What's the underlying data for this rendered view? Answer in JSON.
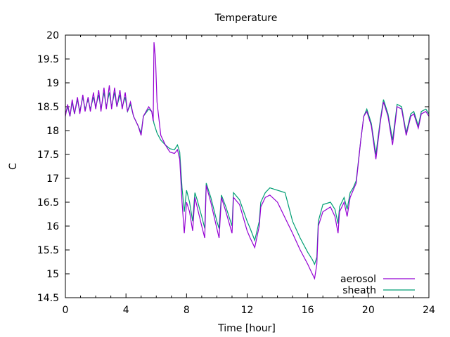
{
  "chart_data": {
    "type": "line",
    "title": "Temperature",
    "xlabel": "Time [hour]",
    "ylabel": "C",
    "xlim": [
      0,
      24
    ],
    "ylim": [
      14.5,
      20
    ],
    "xticks": [
      0,
      4,
      8,
      12,
      16,
      20,
      24
    ],
    "yticks": [
      14.5,
      15,
      15.5,
      16,
      16.5,
      17,
      17.5,
      18,
      18.5,
      19,
      19.5,
      20
    ],
    "ytick_labels": [
      "14.5",
      "15",
      "15.5",
      "16",
      "16.5",
      "17",
      "17.5",
      "18",
      "18.5",
      "19",
      "19.5",
      "20"
    ],
    "grid": false,
    "legend_position": "bottom-right",
    "series": [
      {
        "name": "aerosol",
        "color": "#9400d3",
        "x": [
          0,
          0.15,
          0.3,
          0.45,
          0.6,
          0.8,
          0.95,
          1.15,
          1.3,
          1.5,
          1.65,
          1.85,
          2.0,
          2.2,
          2.35,
          2.55,
          2.7,
          2.9,
          3.05,
          3.25,
          3.4,
          3.6,
          3.75,
          3.95,
          4.1,
          4.3,
          4.5,
          4.8,
          5.0,
          5.15,
          5.5,
          5.7,
          5.8,
          5.85,
          5.95,
          6.05,
          6.3,
          6.6,
          6.9,
          7.2,
          7.4,
          7.55,
          7.7,
          7.85,
          8.0,
          8.2,
          8.4,
          8.55,
          8.7,
          9.0,
          9.2,
          9.3,
          9.6,
          10.0,
          10.15,
          10.3,
          10.6,
          11.0,
          11.1,
          11.5,
          12.0,
          12.2,
          12.5,
          12.8,
          12.9,
          13.2,
          13.5,
          14.0,
          15.0,
          15.5,
          16.0,
          16.3,
          16.45,
          16.6,
          16.7,
          17.0,
          17.5,
          17.8,
          18.0,
          18.1,
          18.4,
          18.6,
          18.8,
          19.0,
          19.2,
          19.5,
          19.7,
          19.9,
          20.2,
          20.5,
          20.8,
          21.0,
          21.3,
          21.6,
          21.9,
          22.2,
          22.5,
          22.8,
          23.0,
          23.3,
          23.5,
          23.8,
          24.0
        ],
        "y": [
          18.3,
          18.55,
          18.3,
          18.65,
          18.35,
          18.7,
          18.35,
          18.75,
          18.4,
          18.7,
          18.4,
          18.8,
          18.45,
          18.85,
          18.4,
          18.9,
          18.45,
          18.95,
          18.45,
          18.9,
          18.5,
          18.85,
          18.45,
          18.8,
          18.4,
          18.6,
          18.3,
          18.1,
          17.9,
          18.3,
          18.5,
          18.4,
          18.2,
          19.85,
          19.5,
          18.6,
          17.9,
          17.7,
          17.55,
          17.52,
          17.6,
          17.4,
          16.5,
          15.85,
          16.5,
          16.3,
          15.9,
          16.6,
          16.4,
          16.0,
          15.75,
          16.85,
          16.5,
          15.95,
          15.75,
          16.6,
          16.3,
          15.85,
          16.6,
          16.45,
          15.9,
          15.75,
          15.55,
          16.0,
          16.4,
          16.6,
          16.65,
          16.5,
          15.85,
          15.5,
          15.2,
          15.0,
          14.9,
          15.2,
          16.0,
          16.3,
          16.4,
          16.2,
          15.85,
          16.3,
          16.5,
          16.2,
          16.6,
          16.75,
          16.9,
          17.8,
          18.3,
          18.4,
          18.1,
          17.4,
          18.2,
          18.6,
          18.3,
          17.7,
          18.5,
          18.45,
          17.9,
          18.3,
          18.35,
          18.05,
          18.35,
          18.4,
          18.3
        ]
      },
      {
        "name": "sheath",
        "color": "#009e73",
        "x": [
          0,
          0.15,
          0.3,
          0.45,
          0.6,
          0.8,
          0.95,
          1.15,
          1.3,
          1.5,
          1.65,
          1.85,
          2.0,
          2.2,
          2.35,
          2.55,
          2.7,
          2.9,
          3.05,
          3.25,
          3.4,
          3.6,
          3.75,
          3.95,
          4.1,
          4.3,
          4.5,
          4.8,
          5.0,
          5.15,
          5.5,
          5.7,
          5.85,
          6.05,
          6.3,
          6.6,
          6.9,
          7.2,
          7.4,
          7.55,
          7.7,
          7.85,
          8.0,
          8.2,
          8.4,
          8.55,
          8.7,
          9.0,
          9.2,
          9.3,
          9.6,
          10.0,
          10.15,
          10.3,
          10.6,
          11.0,
          11.1,
          11.5,
          12.0,
          12.2,
          12.5,
          12.8,
          12.9,
          13.2,
          13.5,
          14.5,
          15.0,
          15.5,
          16.0,
          16.3,
          16.45,
          16.6,
          16.7,
          17.0,
          17.5,
          17.8,
          18.0,
          18.1,
          18.4,
          18.6,
          18.8,
          19.0,
          19.2,
          19.5,
          19.7,
          19.9,
          20.2,
          20.5,
          20.8,
          21.0,
          21.3,
          21.6,
          21.9,
          22.2,
          22.5,
          22.8,
          23.0,
          23.3,
          23.5,
          23.8,
          24.0
        ],
        "y": [
          18.35,
          18.5,
          18.3,
          18.6,
          18.35,
          18.65,
          18.4,
          18.7,
          18.45,
          18.65,
          18.45,
          18.7,
          18.5,
          18.75,
          18.45,
          18.8,
          18.5,
          18.8,
          18.5,
          18.8,
          18.5,
          18.75,
          18.5,
          18.7,
          18.4,
          18.55,
          18.3,
          18.1,
          17.95,
          18.3,
          18.45,
          18.4,
          18.15,
          17.95,
          17.8,
          17.7,
          17.62,
          17.6,
          17.7,
          17.55,
          16.8,
          16.3,
          16.75,
          16.5,
          16.1,
          16.7,
          16.55,
          16.2,
          15.95,
          16.9,
          16.6,
          16.1,
          15.95,
          16.65,
          16.4,
          16.0,
          16.7,
          16.55,
          16.1,
          15.95,
          15.7,
          16.1,
          16.5,
          16.7,
          16.8,
          16.7,
          16.1,
          15.75,
          15.45,
          15.3,
          15.2,
          15.35,
          16.1,
          16.45,
          16.5,
          16.35,
          16.05,
          16.4,
          16.6,
          16.35,
          16.7,
          16.8,
          16.95,
          17.8,
          18.3,
          18.45,
          18.15,
          17.5,
          18.25,
          18.65,
          18.35,
          17.8,
          18.55,
          18.5,
          17.95,
          18.35,
          18.4,
          18.1,
          18.4,
          18.45,
          18.35
        ]
      }
    ]
  }
}
